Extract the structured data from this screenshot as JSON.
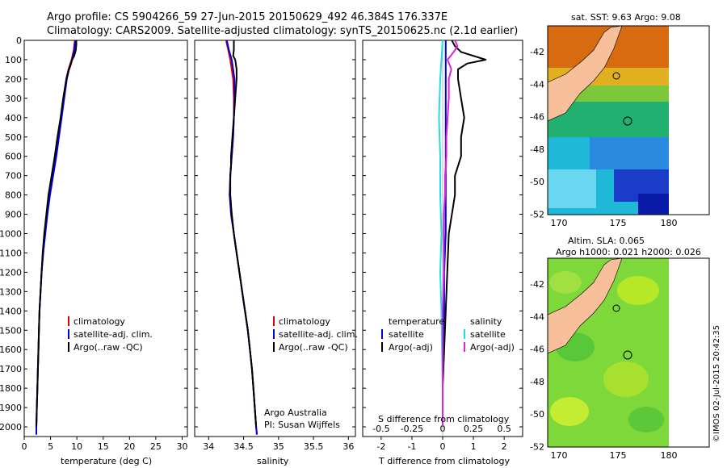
{
  "header": {
    "title_line1": "Argo profile: CS 5904266_59 27-Jun-2015 20150629_492 46.384S 176.337E",
    "title_line2": "Climatology: CARS2009. Satellite-adjusted climatology: synTS_20150625.nc (2.1d earlier)"
  },
  "colors": {
    "climatology": "#e00000",
    "satellite": "#0000dd",
    "argo": "#000000",
    "satellite_s": "#22dddd",
    "argo_s": "#dd22dd"
  },
  "chart_data": [
    {
      "type": "line",
      "id": "temperature",
      "xlabel": "temperature (deg C)",
      "ylabel": "",
      "xlim": [
        0,
        31
      ],
      "ylim": [
        2050,
        0
      ],
      "x_ticks": [
        "0",
        "5",
        "10",
        "15",
        "20",
        "25",
        "30"
      ],
      "x_tick_values": [
        0,
        5,
        10,
        15,
        20,
        25,
        30
      ],
      "y_ticks": [
        "0",
        "100",
        "200",
        "300",
        "400",
        "500",
        "600",
        "700",
        "800",
        "900",
        "1000",
        "1100",
        "1200",
        "1300",
        "1400",
        "1500",
        "1600",
        "1700",
        "1800",
        "1900",
        "2000"
      ],
      "legend": [
        "climatology",
        "satellite-adj. clim.",
        "Argo(..raw -QC)"
      ],
      "series": [
        {
          "name": "climatology",
          "depth": [
            0,
            50,
            100,
            150,
            200,
            300,
            400,
            500,
            600,
            700,
            800,
            900,
            1000,
            1100,
            1200,
            1300,
            1400,
            1500,
            1600,
            1700,
            1800,
            1900,
            2000,
            2040
          ],
          "values": [
            9.6,
            9.4,
            9.0,
            8.4,
            8.0,
            7.5,
            7.0,
            6.5,
            6.0,
            5.4,
            4.8,
            4.3,
            3.9,
            3.6,
            3.3,
            3.1,
            2.9,
            2.8,
            2.7,
            2.6,
            2.5,
            2.4,
            2.3,
            2.3
          ]
        },
        {
          "name": "satellite-adj. clim.",
          "depth": [
            0,
            50,
            100,
            150,
            200,
            300,
            400,
            500,
            600,
            700,
            800,
            900,
            1000,
            1100,
            1200,
            1300,
            1400,
            1500,
            1600,
            1700,
            1800,
            1900,
            2000,
            2040
          ],
          "values": [
            9.7,
            9.5,
            9.1,
            8.5,
            8.1,
            7.6,
            7.1,
            6.6,
            6.1,
            5.5,
            4.9,
            4.4,
            4.0,
            3.6,
            3.3,
            3.1,
            2.9,
            2.8,
            2.7,
            2.6,
            2.5,
            2.4,
            2.3,
            2.3
          ]
        },
        {
          "name": "Argo(..raw -QC)",
          "depth": [
            0,
            20,
            50,
            80,
            100,
            130,
            160,
            200,
            300,
            400,
            500,
            600,
            700,
            800,
            900,
            1000,
            1100,
            1200,
            1300,
            1400,
            1500,
            1600,
            1700,
            1800,
            1900,
            2000
          ],
          "values": [
            9.9,
            9.9,
            9.8,
            9.5,
            9.1,
            8.8,
            8.4,
            8.0,
            7.4,
            6.9,
            6.3,
            5.8,
            5.2,
            4.6,
            4.2,
            3.8,
            3.5,
            3.3,
            3.1,
            2.9,
            2.8,
            2.7,
            2.6,
            2.5,
            2.4,
            2.3
          ]
        }
      ]
    },
    {
      "type": "line",
      "id": "salinity",
      "xlabel": "salinity",
      "xlim": [
        33.8,
        36.1
      ],
      "ylim": [
        2050,
        0
      ],
      "x_ticks": [
        "34",
        "34.5",
        "35",
        "35.5",
        "36"
      ],
      "x_tick_values": [
        34,
        34.5,
        35,
        35.5,
        36
      ],
      "legend": [
        "climatology",
        "satellite-adj. clim.",
        "Argo(..raw -QC)"
      ],
      "annotation": [
        "Argo Australia",
        "PI: Susan Wijffels"
      ],
      "series": [
        {
          "name": "climatology",
          "depth": [
            0,
            50,
            100,
            200,
            300,
            400,
            500,
            600,
            700,
            800,
            900,
            1000,
            1100,
            1200,
            1300,
            1400,
            1500,
            1600,
            1700,
            1800,
            1900,
            2000,
            2040
          ],
          "values": [
            34.25,
            34.28,
            34.31,
            34.35,
            34.36,
            34.36,
            34.35,
            34.33,
            34.31,
            34.3,
            34.33,
            34.36,
            34.4,
            34.44,
            34.48,
            34.52,
            34.56,
            34.59,
            34.62,
            34.64,
            34.66,
            34.68,
            34.69
          ]
        },
        {
          "name": "satellite-adj. clim.",
          "depth": [
            0,
            50,
            100,
            200,
            300,
            400,
            500,
            600,
            700,
            800,
            900,
            1000,
            1100,
            1200,
            1300,
            1400,
            1500,
            1600,
            1700,
            1800,
            1900,
            2000,
            2040
          ],
          "values": [
            34.26,
            34.29,
            34.33,
            34.37,
            34.37,
            34.36,
            34.35,
            34.33,
            34.31,
            34.3,
            34.32,
            34.36,
            34.4,
            34.44,
            34.48,
            34.52,
            34.56,
            34.59,
            34.62,
            34.64,
            34.66,
            34.68,
            34.69
          ]
        },
        {
          "name": "Argo(..raw -QC)",
          "depth": [
            0,
            50,
            80,
            100,
            150,
            200,
            300,
            400,
            500,
            550,
            600,
            650,
            700,
            800,
            900,
            1000,
            1100,
            1200,
            1300,
            1400,
            1500,
            1600,
            1700,
            1800,
            1900,
            2000
          ],
          "values": [
            34.36,
            34.36,
            34.35,
            34.38,
            34.4,
            34.4,
            34.38,
            34.36,
            34.34,
            34.33,
            34.32,
            34.32,
            34.31,
            34.31,
            34.33,
            34.36,
            34.4,
            34.44,
            34.48,
            34.52,
            34.56,
            34.59,
            34.62,
            34.64,
            34.66,
            34.68
          ]
        }
      ]
    },
    {
      "type": "line",
      "id": "differences",
      "xlabel": "T difference from climatology",
      "x2label": "S difference from climatology",
      "xlim": [
        -2.6,
        2.6
      ],
      "ylim": [
        2050,
        0
      ],
      "x_ticks": [
        "-2",
        "-1",
        "0",
        "1",
        "2"
      ],
      "x_tick_values": [
        -2,
        -1,
        0,
        1,
        2
      ],
      "x2_ticks": [
        "-0.5",
        "-0.25",
        "0",
        "0.25",
        "0.5"
      ],
      "x2_tick_values": [
        -0.5,
        -0.25,
        0,
        0.25,
        0.5
      ],
      "legend_groups": {
        "temperature_title": "temperature",
        "salinity_title": "salinity",
        "temperature": [
          "satellite",
          "Argo(-adj)"
        ],
        "salinity": [
          "satellite",
          "Argo(-adj)"
        ]
      },
      "series": [
        {
          "name": "T satellite",
          "depth": [
            0,
            100,
            200,
            400,
            600,
            800,
            1000,
            1200,
            1400,
            1600,
            1800,
            2000
          ],
          "values": [
            0.1,
            0.1,
            0.1,
            0.1,
            0.1,
            0.1,
            0.1,
            0.05,
            0.05,
            0.0,
            0.0,
            0.0
          ]
        },
        {
          "name": "T Argo(-adj)",
          "depth": [
            0,
            30,
            60,
            100,
            120,
            150,
            200,
            300,
            400,
            500,
            600,
            700,
            800,
            900,
            1000,
            1200,
            1400,
            1600,
            1800,
            2000
          ],
          "values": [
            0.3,
            0.4,
            0.6,
            1.4,
            0.8,
            0.5,
            0.5,
            0.6,
            0.7,
            0.6,
            0.6,
            0.4,
            0.4,
            0.3,
            0.2,
            0.15,
            0.1,
            0.05,
            0.0,
            0.0
          ]
        },
        {
          "name": "S satellite",
          "depth": [
            0,
            100,
            200,
            400,
            600,
            800,
            1000,
            1200,
            1400,
            1600,
            1800,
            2000
          ],
          "values": [
            0.0,
            -0.01,
            -0.02,
            -0.03,
            -0.02,
            -0.02,
            -0.01,
            -0.02,
            -0.01,
            -0.005,
            0.0,
            0.0
          ]
        },
        {
          "name": "S Argo(-adj)",
          "depth": [
            0,
            30,
            60,
            100,
            150,
            200,
            300,
            400,
            500,
            600,
            700,
            800,
            900,
            1000,
            1200,
            1400,
            1600,
            1800,
            2000
          ],
          "values": [
            0.1,
            0.12,
            0.09,
            0.04,
            0.07,
            0.05,
            0.05,
            0.04,
            0.03,
            0.03,
            0.02,
            0.02,
            0.01,
            0.01,
            0.01,
            0.0,
            0.0,
            0.0,
            0.0
          ]
        }
      ]
    }
  ],
  "maps": {
    "sst_title": "sat. SST: 9.63 Argo: 9.08",
    "sla_title_line1": "Altim. SLA: 0.065",
    "sla_title_line2": "Argo h1000: 0.021 h2000: 0.026",
    "lat_ticks": [
      "-42",
      "-44",
      "-46",
      "-48",
      "-50",
      "-52"
    ],
    "lon_ticks": [
      "170",
      "175",
      "180"
    ],
    "float_position": {
      "lat": -46.384,
      "lon": 176.337
    }
  },
  "footer": {
    "credit": "©IMOS 02-Jul-2015 20:42:35"
  }
}
